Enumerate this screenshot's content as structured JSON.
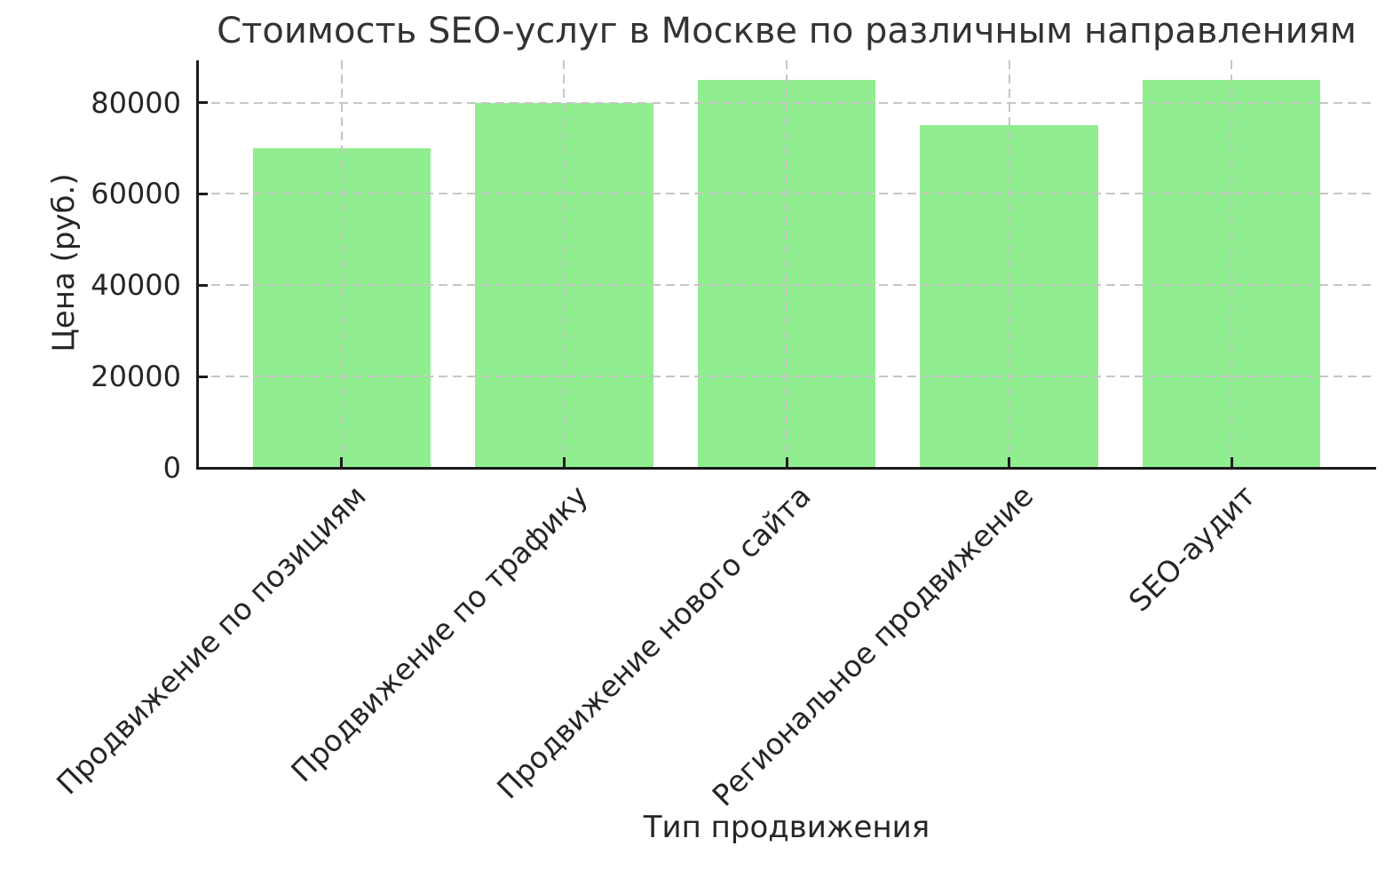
{
  "chart_data": {
    "type": "bar",
    "title": "Стоимость SEO-услуг в Москве по различным направлениям",
    "xlabel": "Тип продвижения",
    "ylabel": "Цена (руб.)",
    "categories": [
      "Продвижение по позициям",
      "Продвижение по трафику",
      "Продвижение нового сайта",
      "Региональное продвижение",
      "SEO-аудит"
    ],
    "values": [
      70000,
      80000,
      85000,
      75000,
      85000
    ],
    "yticks": [
      "0",
      "20000",
      "40000",
      "60000",
      "80000"
    ],
    "ytick_values": [
      0,
      20000,
      40000,
      60000,
      80000
    ],
    "ylim": [
      0,
      89250
    ],
    "bar_color": "#90EE90",
    "grid": "dashed",
    "grid_color": "#c6c6c6",
    "text_color": "#262626",
    "spine_color": "#1a1a1a",
    "legend_position": "none"
  }
}
